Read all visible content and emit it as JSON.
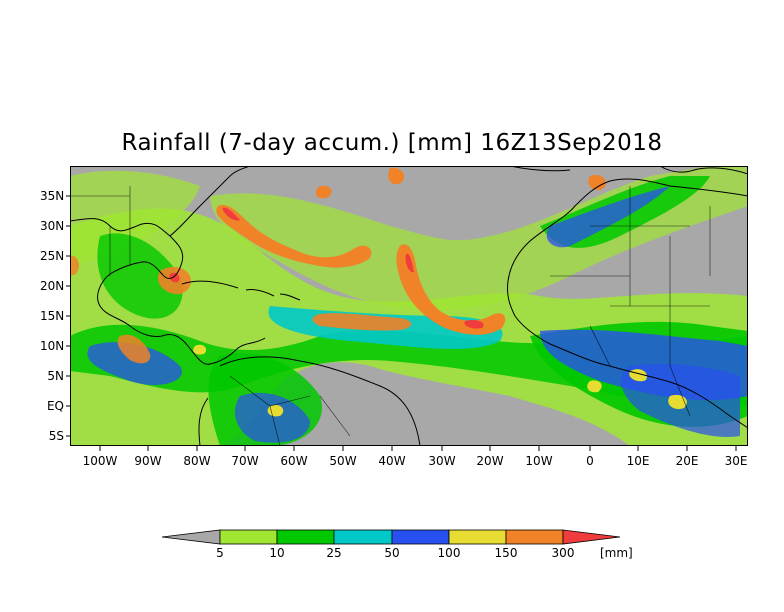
{
  "title": "Rainfall (7-day accum.) [mm] 16Z13Sep2018",
  "lat_labels": [
    "35N",
    "30N",
    "25N",
    "20N",
    "15N",
    "10N",
    "5N",
    "EQ",
    "5S"
  ],
  "lon_labels": [
    "100W",
    "90W",
    "80W",
    "70W",
    "60W",
    "50W",
    "40W",
    "30W",
    "20W",
    "10W",
    "0",
    "10E",
    "20E",
    "30E"
  ],
  "colorbar": {
    "labels": [
      "5",
      "10",
      "25",
      "50",
      "100",
      "150",
      "300"
    ],
    "unit": "[mm]",
    "colors": [
      "#a8a8a8",
      "#a0e632",
      "#00c800",
      "#00c8c8",
      "#2850f0",
      "#e6dc32",
      "#f08228",
      "#f03c3c"
    ]
  },
  "colors": {
    "ocean_nodata": "#a8a8a8",
    "land_dry": "#a8a8a8"
  }
}
